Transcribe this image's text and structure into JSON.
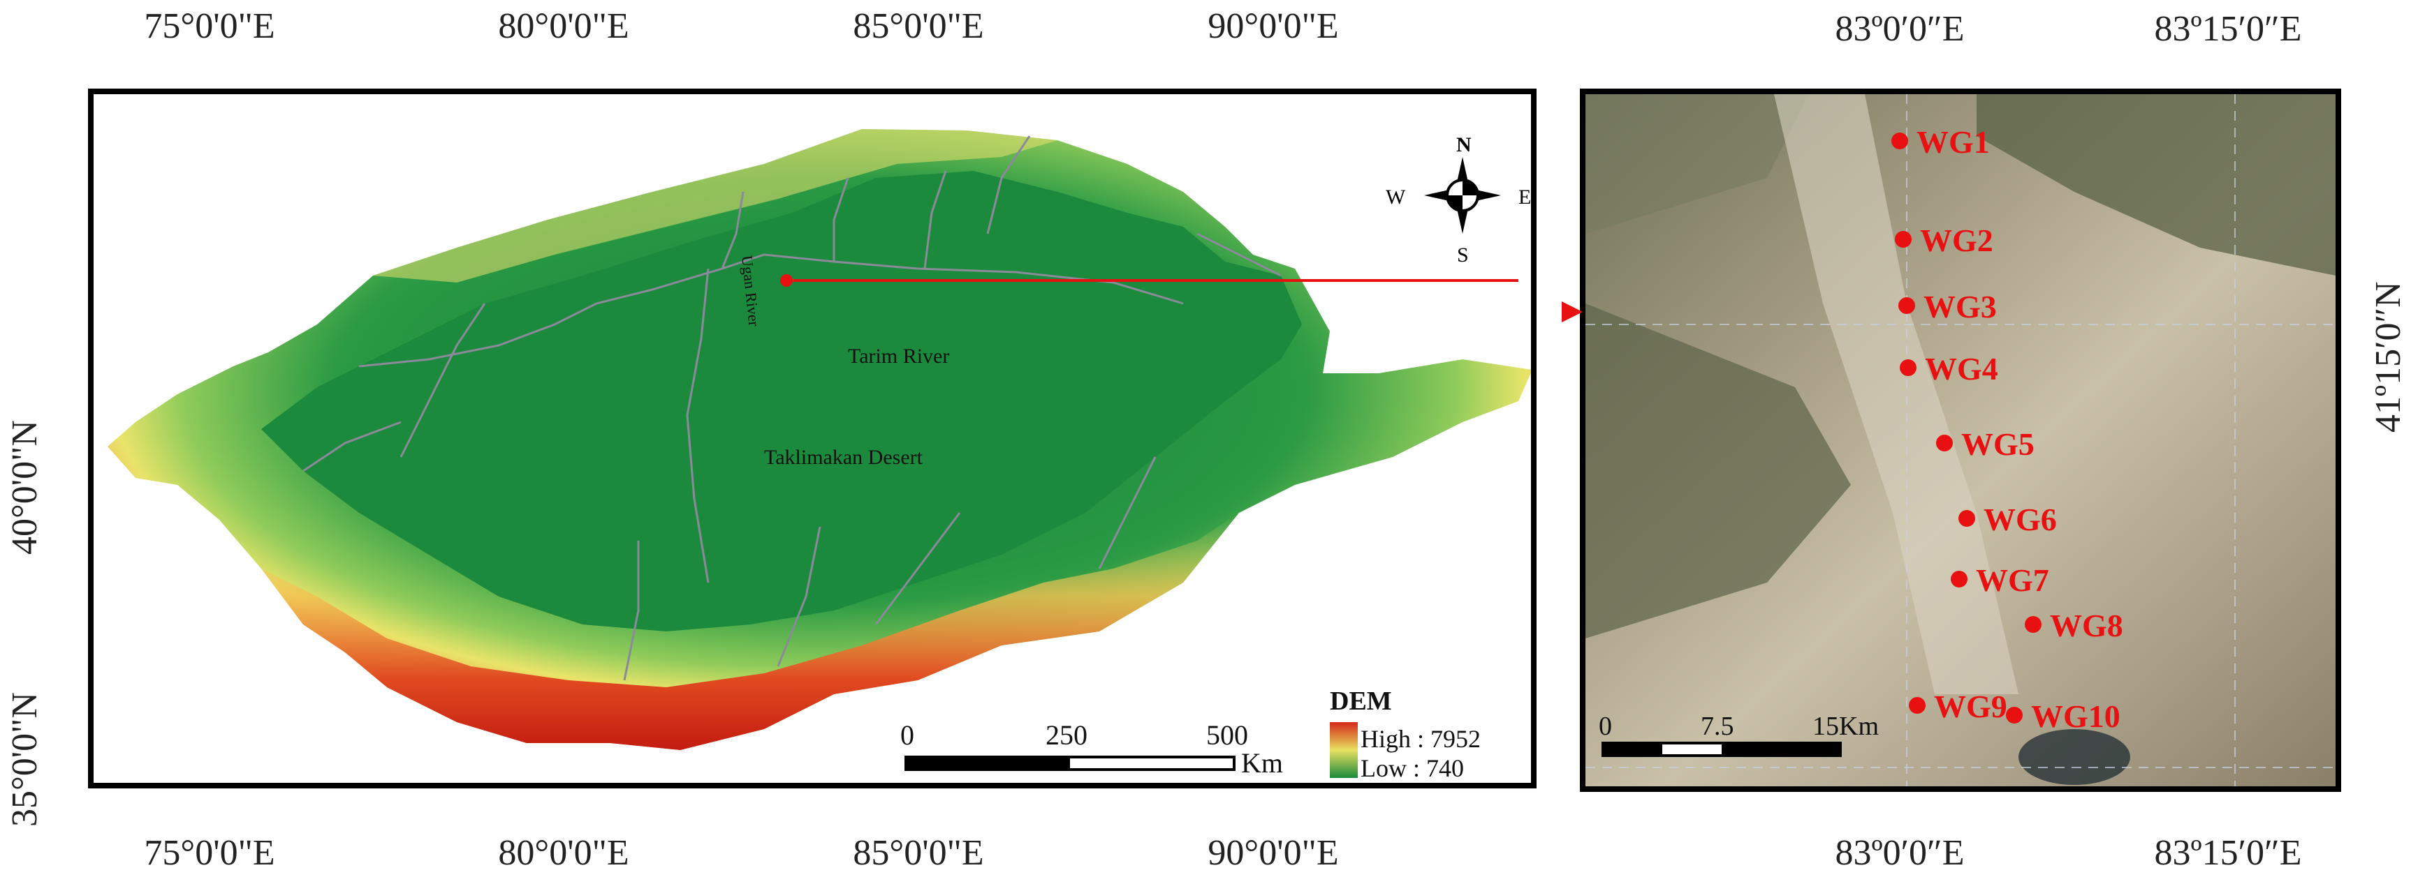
{
  "left_map": {
    "lon_ticks": [
      "75°0'0\"E",
      "80°0'0\"E",
      "85°0'0\"E",
      "90°0'0\"E"
    ],
    "lat_ticks": [
      "40°0'0\"N",
      "35°0'0\"N"
    ],
    "rivers": {
      "ugan": "Ugan River",
      "tarim": "Tarim River"
    },
    "desert": "Taklimakan Desert",
    "compass": {
      "n": "N",
      "s": "S",
      "e": "E",
      "w": "W"
    },
    "scalebar": {
      "ticks": [
        "0",
        "250",
        "500"
      ],
      "unit": "Km"
    },
    "legend": {
      "title": "DEM",
      "high": "High : 7952",
      "low": "Low : 740"
    },
    "colors": {
      "dem_low": "#1a8a3a",
      "dem_mid": "#e8e060",
      "dem_high": "#d42818",
      "rivers": "#8a8a9a"
    }
  },
  "right_map": {
    "lon_ticks": [
      "83º0′0″E",
      "83º15′0″E"
    ],
    "lat_ticks": [
      "41º15′0″N"
    ],
    "scalebar": {
      "ticks": [
        "0",
        "7.5",
        "15Km"
      ]
    },
    "sites": [
      "WG1",
      "WG2",
      "WG3",
      "WG4",
      "WG5",
      "WG6",
      "WG7",
      "WG8",
      "WG9",
      "WG10"
    ],
    "colors": {
      "site": "#e81010",
      "imagery": "#8f8a72"
    }
  }
}
